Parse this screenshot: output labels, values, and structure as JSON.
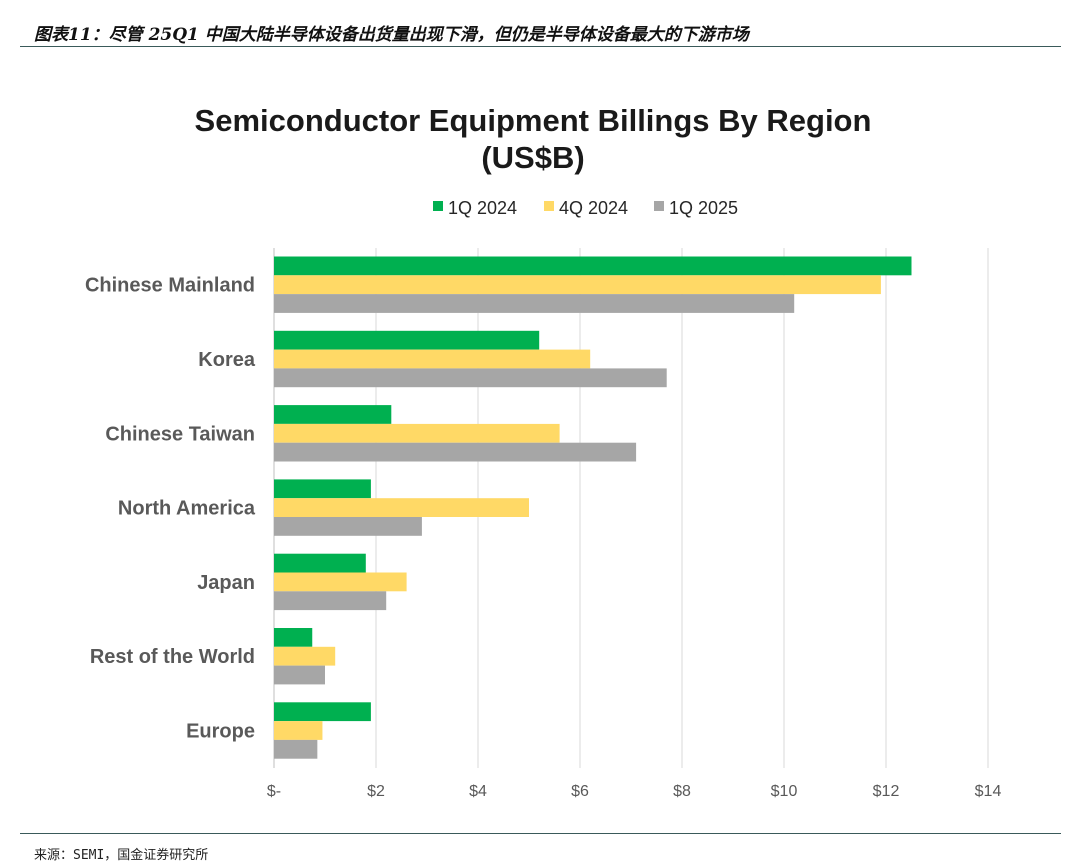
{
  "figure": {
    "caption": "图表11：尽管 25Q1 中国大陆半导体设备出货量出现下滑，但仍是半导体设备最大的下游市场",
    "source": "来源：SEMI，国金证券研究所"
  },
  "chart_data": {
    "type": "bar",
    "orientation": "horizontal",
    "title_lines": [
      "Semiconductor Equipment Billings By Region",
      "(US$B)"
    ],
    "categories": [
      "Chinese Mainland",
      "Korea",
      "Chinese Taiwan",
      "North America",
      "Japan",
      "Rest of the World",
      "Europe"
    ],
    "series": [
      {
        "name": "1Q 2024",
        "color": "#00b050",
        "values": [
          12.5,
          5.2,
          2.3,
          1.9,
          1.8,
          0.75,
          1.9
        ]
      },
      {
        "name": "4Q 2024",
        "color": "#ffd966",
        "values": [
          11.9,
          6.2,
          5.6,
          5.0,
          2.6,
          1.2,
          0.95
        ]
      },
      {
        "name": "1Q 2025",
        "color": "#a6a6a6",
        "values": [
          10.2,
          7.7,
          7.1,
          2.9,
          2.2,
          1.0,
          0.85
        ]
      }
    ],
    "xlim": [
      0,
      14
    ],
    "xticks": [
      0,
      2,
      4,
      6,
      8,
      10,
      12,
      14
    ],
    "xtick_labels": [
      "$-",
      "$2",
      "$4",
      "$6",
      "$8",
      "$10",
      "$12",
      "$14"
    ],
    "grid": true,
    "legend_position": "top"
  }
}
